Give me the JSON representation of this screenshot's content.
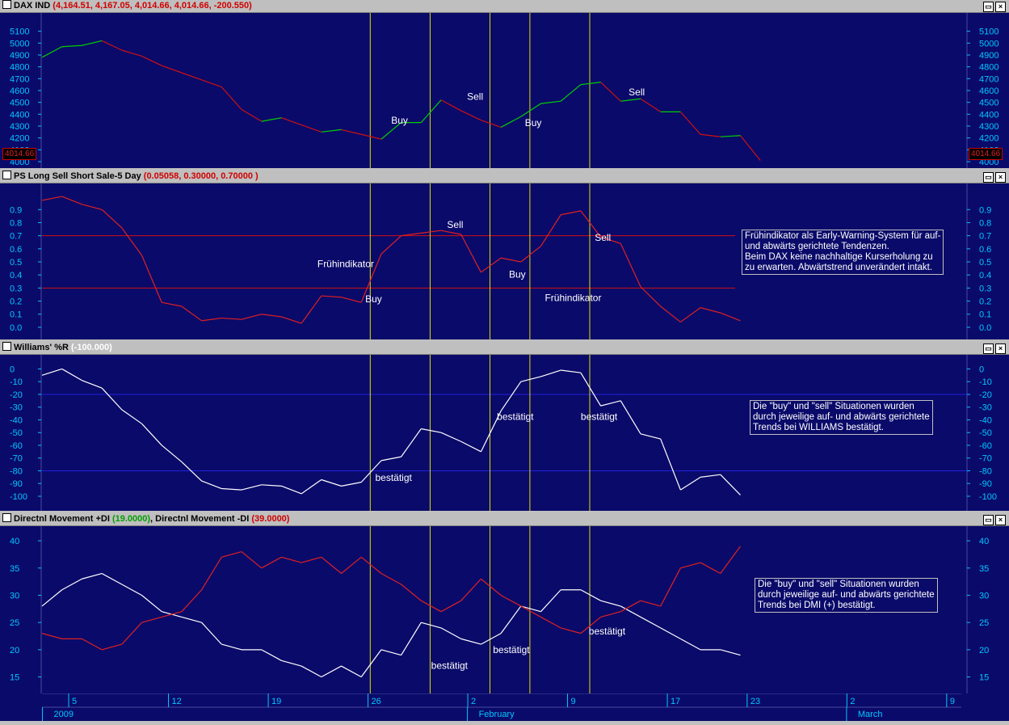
{
  "icons": {
    "panel": "panel-box-icon",
    "restore": "restore-icon",
    "close": "close-icon"
  },
  "colors": {
    "background": "#0a0a6a",
    "price_line_up": "#00d000",
    "price_line_down": "#d01010",
    "indicator": "#e02020",
    "williams": "#ffffff",
    "di_plus": "#ffffff",
    "di_minus": "#e02020",
    "signal_line": "#e0e000",
    "axis_text": "#00c8ff"
  },
  "chart_data": [
    {
      "id": "dax",
      "type": "line",
      "title_name": "DAX IND",
      "title_values": "(4,164.51, 4,167.05, 4,014.66, 4,014.66, -200.550)",
      "last_value": "4014.66",
      "ylim": [
        4000,
        5200
      ],
      "yticks": [
        4000,
        4100,
        4200,
        4300,
        4400,
        4500,
        4600,
        4700,
        4800,
        4900,
        5000,
        5100
      ],
      "values": [
        4880,
        4970,
        4980,
        5020,
        4940,
        4890,
        4810,
        4750,
        4690,
        4630,
        4440,
        4340,
        4370,
        4310,
        4250,
        4270,
        4230,
        4190,
        4330,
        4330,
        4520,
        4430,
        4350,
        4290,
        4380,
        4490,
        4510,
        4650,
        4670,
        4510,
        4530,
        4420,
        4420,
        4230,
        4210,
        4220,
        4010
      ],
      "annotations": [
        {
          "text": "Buy",
          "index": 17.5,
          "y": 4320
        },
        {
          "text": "Sell",
          "index": 21.3,
          "y": 4520
        },
        {
          "text": "Buy",
          "index": 24.2,
          "y": 4300
        },
        {
          "text": "Sell",
          "index": 29.4,
          "y": 4560
        }
      ]
    },
    {
      "id": "ps",
      "type": "line",
      "title_name": "PS Long Sell Short Sale-5 Day",
      "title_values": "(0.05058, 0.30000, 0.70000 )",
      "ylim": [
        -0.05,
        1.05
      ],
      "yticks": [
        0.0,
        0.1,
        0.2,
        0.3,
        0.4,
        0.5,
        0.6,
        0.7,
        0.8,
        0.9
      ],
      "hlines": [
        0.3,
        0.7
      ],
      "values": [
        0.97,
        1.0,
        0.94,
        0.9,
        0.76,
        0.55,
        0.19,
        0.16,
        0.05,
        0.07,
        0.06,
        0.1,
        0.08,
        0.03,
        0.24,
        0.23,
        0.19,
        0.56,
        0.7,
        0.72,
        0.74,
        0.71,
        0.42,
        0.53,
        0.5,
        0.62,
        0.86,
        0.89,
        0.69,
        0.64,
        0.31,
        0.16,
        0.04,
        0.15,
        0.11,
        0.05
      ],
      "annotations": [
        {
          "text": "Frühindikator",
          "index": 13.8,
          "y": 0.46
        },
        {
          "text": "Buy",
          "index": 16.2,
          "y": 0.19
        },
        {
          "text": "Sell",
          "index": 20.3,
          "y": 0.76
        },
        {
          "text": "Buy",
          "index": 23.4,
          "y": 0.38
        },
        {
          "text": "Frühindikator",
          "index": 25.2,
          "y": 0.2
        },
        {
          "text": "Sell",
          "index": 27.7,
          "y": 0.66
        }
      ],
      "note": [
        "Frühindikator als Early-Warning-System für auf-",
        "und abwärts gerichtete Tendenzen.",
        "Beim DAX keine nachhaltige Kurserholung zu",
        "zu erwarten. Abwärtstrend unverändert intakt."
      ]
    },
    {
      "id": "williams",
      "type": "line",
      "title_name": "Williams' %R",
      "title_values": "(-100.000)",
      "ylim": [
        -107,
        6
      ],
      "yticks": [
        0,
        -10,
        -20,
        -30,
        -40,
        -50,
        -60,
        -70,
        -80,
        -90,
        -100
      ],
      "hlines": [
        -20,
        -80
      ],
      "values": [
        -5,
        0,
        -9,
        -15,
        -32,
        -43,
        -60,
        -73,
        -88,
        -94,
        -95,
        -91,
        -92,
        -98,
        -87,
        -92,
        -89,
        -72,
        -69,
        -47,
        -50,
        -57,
        -65,
        -33,
        -10,
        -6,
        -1,
        -3,
        -29,
        -25,
        -51,
        -55,
        -95,
        -85,
        -83,
        -99
      ],
      "annotations": [
        {
          "text": "bestätigt",
          "index": 16.7,
          "y": -88
        },
        {
          "text": "bestätigt",
          "index": 22.8,
          "y": -40
        },
        {
          "text": "bestätigt",
          "index": 27.0,
          "y": -40
        }
      ],
      "note": [
        "Die \"buy\" und \"sell\" Situationen wurden",
        "durch jeweilige auf- und abwärts gerichtete",
        "Trends bei WILLIAMS bestätigt."
      ]
    },
    {
      "id": "dmi",
      "type": "line",
      "title_plus": "Directnl Movement +DI",
      "value_plus": "(19.0000)",
      "title_minus": "Directnl Movement -DI",
      "value_minus": "(39.0000)",
      "ylim": [
        13,
        41.5
      ],
      "yticks": [
        15,
        20,
        25,
        30,
        35,
        40
      ],
      "series": [
        {
          "name": "+DI",
          "values": [
            28,
            31,
            33,
            34,
            32,
            30,
            27,
            26,
            25,
            21,
            20,
            20,
            18,
            17,
            15,
            17,
            15,
            20,
            19,
            25,
            24,
            22,
            21,
            23,
            28,
            27,
            31,
            31,
            29,
            28,
            26,
            24,
            22,
            20,
            20,
            19
          ]
        },
        {
          "name": "-DI",
          "values": [
            23,
            22,
            22,
            20,
            21,
            25,
            26,
            27,
            31,
            37,
            38,
            35,
            37,
            36,
            37,
            34,
            37,
            34,
            32,
            29,
            27,
            29,
            33,
            30,
            28,
            26,
            24,
            23,
            26,
            27,
            29,
            28,
            35,
            36,
            34,
            39
          ]
        }
      ],
      "annotations": [
        {
          "text": "bestätigt",
          "index": 19.5,
          "y": 16.5
        },
        {
          "text": "bestätigt",
          "index": 22.6,
          "y": 19.4
        },
        {
          "text": "bestätigt",
          "index": 27.4,
          "y": 22.8
        }
      ],
      "note": [
        "Die \"buy\" und \"sell\" Situationen wurden",
        "durch jeweilige auf- und abwärts gerichtete",
        "Trends bei DMI (+) bestätigt."
      ]
    }
  ],
  "signal_lines_index": [
    16.45,
    19.45,
    22.45,
    24.45,
    27.45
  ],
  "x_axis": {
    "day_ticks": [
      {
        "label": "5",
        "index": 1.5
      },
      {
        "label": "12",
        "index": 6.5
      },
      {
        "label": "19",
        "index": 11.5
      },
      {
        "label": "26",
        "index": 16.5
      },
      {
        "label": "2",
        "index": 21.5
      },
      {
        "label": "9",
        "index": 26.5
      },
      {
        "label": "17",
        "index": 31.5
      },
      {
        "label": "23",
        "index": 35.5
      },
      {
        "label": "2",
        "index": 40.5
      },
      {
        "label": "9",
        "index": 45.5
      }
    ],
    "months": [
      {
        "label": "2009",
        "index": 0.1
      },
      {
        "label": "February",
        "index": 21.4
      },
      {
        "label": "March",
        "index": 40.4
      }
    ]
  }
}
